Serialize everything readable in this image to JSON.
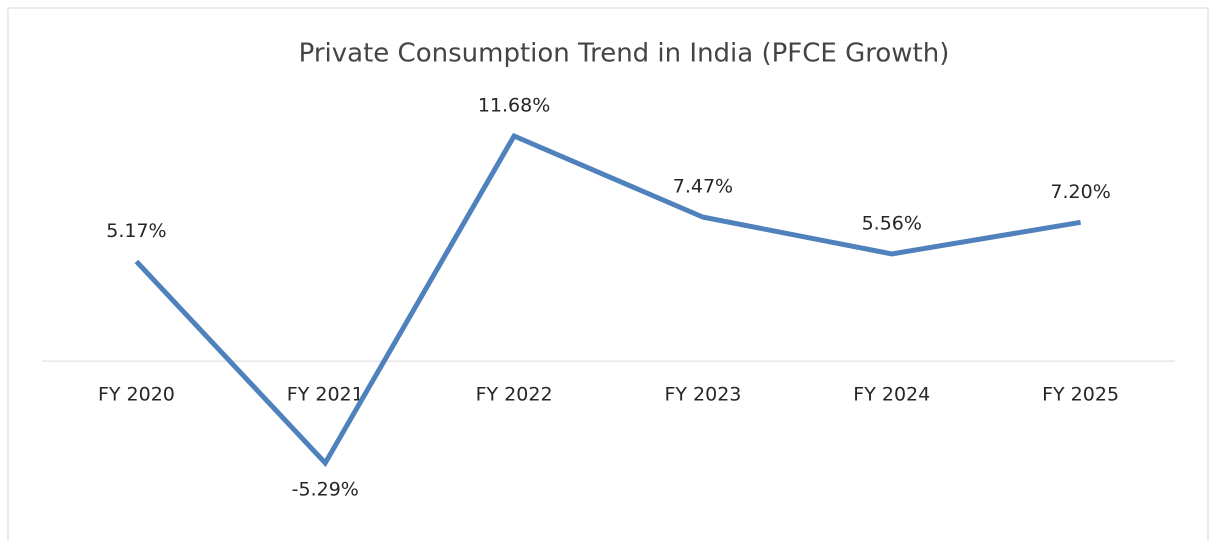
{
  "chart_data": {
    "type": "line",
    "title": "Private Consumption Trend in India (PFCE Growth)",
    "categories": [
      "FY 2020",
      "FY 2021",
      "FY 2022",
      "FY 2023",
      "FY 2024",
      "FY 2025"
    ],
    "values": [
      5.17,
      -5.29,
      11.68,
      7.47,
      5.56,
      7.2
    ],
    "value_labels": [
      "5.17%",
      "-5.29%",
      "11.68%",
      "7.47%",
      "5.56%",
      "7.20%"
    ],
    "color": "#4f81bd"
  }
}
